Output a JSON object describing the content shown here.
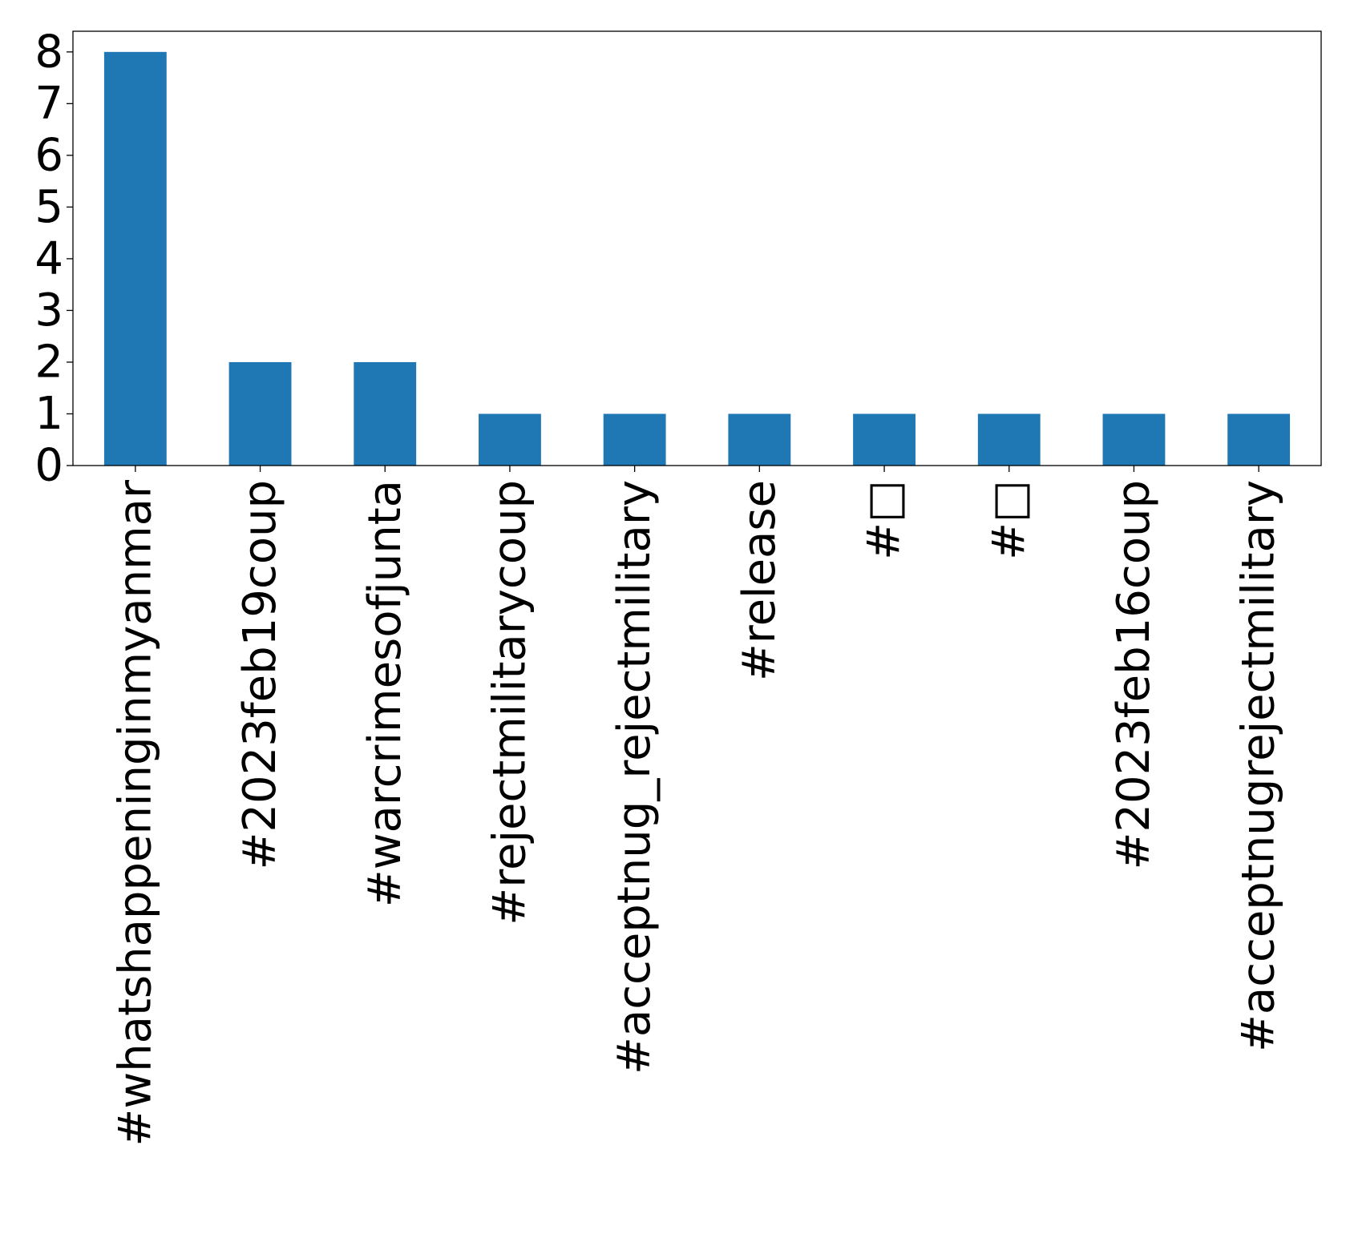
{
  "chart_data": {
    "type": "bar",
    "title": "",
    "xlabel": "",
    "ylabel": "",
    "categories": [
      "#whatshappeninginmyanmar",
      "#2023feb19coup",
      "#warcrimesofjunta",
      "#rejectmilitarycoup",
      "#acceptnug_rejectmilitary",
      "#release",
      "#□",
      "#□",
      "#2023feb16coup",
      "#acceptnugrejectmilitary"
    ],
    "values": [
      8,
      2,
      2,
      1,
      1,
      1,
      1,
      1,
      1,
      1
    ],
    "yticks": [
      "0",
      "1",
      "2",
      "3",
      "4",
      "5",
      "6",
      "7",
      "8"
    ],
    "ylim": [
      0,
      8.4
    ],
    "grid": false,
    "legend": "none",
    "bar_color": "#1f77b4"
  }
}
